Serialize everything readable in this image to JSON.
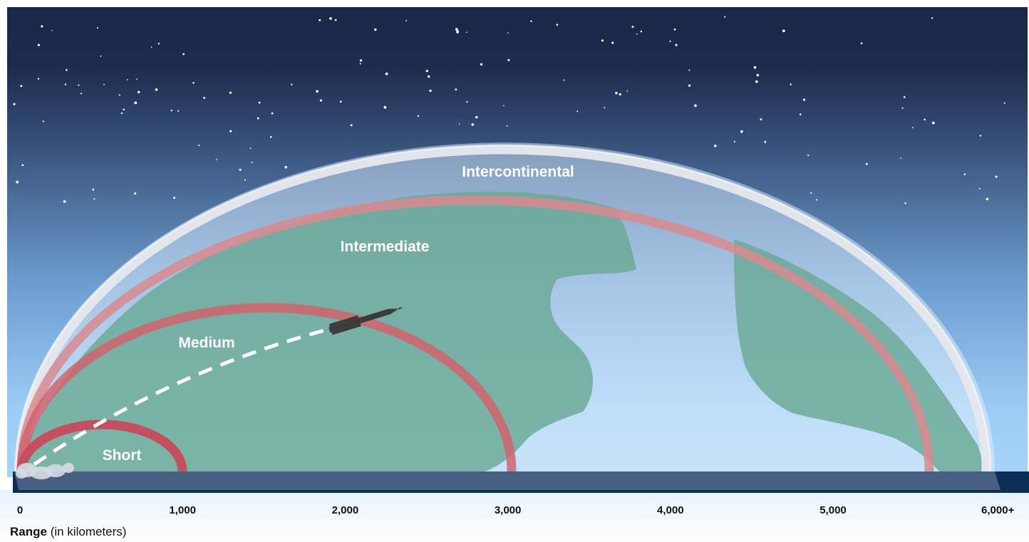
{
  "diagram": {
    "tiers": [
      {
        "id": "short",
        "label": "Short"
      },
      {
        "id": "medium",
        "label": "Medium"
      },
      {
        "id": "intermediate",
        "label": "Intermediate"
      },
      {
        "id": "intercontinental",
        "label": "Intercontinental"
      }
    ],
    "axis": {
      "title_bold": "Range",
      "title_rest": " (in kilometers)",
      "ticks": [
        {
          "label": "0",
          "value": 0
        },
        {
          "label": "1,000",
          "value": 1000
        },
        {
          "label": "2,000",
          "value": 2000
        },
        {
          "label": "3,000",
          "value": 3000
        },
        {
          "label": "4,000",
          "value": 4000
        },
        {
          "label": "5,000",
          "value": 5000
        },
        {
          "label": "6,000+",
          "value": 6000
        }
      ]
    },
    "colors": {
      "sky_top": "#1b2647",
      "sky_bottom": "#8fc4f2",
      "ground": "#0c2d55",
      "land": "#6aa895",
      "arc": "#d2636c",
      "dome": "#e6e8ec"
    },
    "icons": [
      "missile-icon",
      "launch-smoke-icon",
      "star-icon"
    ]
  }
}
